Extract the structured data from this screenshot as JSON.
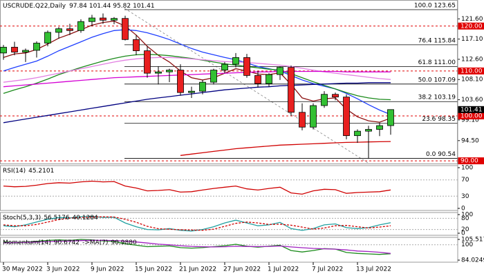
{
  "chart_data": {
    "type": "candlestick",
    "title": "USCRUDE.Q22,Daily",
    "categories": [
      "30 May 2022",
      null,
      null,
      null,
      "3 Jun 2022",
      null,
      null,
      null,
      "9 Jun 2022",
      null,
      null,
      null,
      "15 Jun 2022",
      null,
      null,
      null,
      "21 Jun 2022",
      null,
      null,
      null,
      "27 Jun 2022",
      null,
      null,
      null,
      "1 Jul 2022",
      null,
      null,
      null,
      "7 Jul 2022",
      null,
      null,
      null,
      "13 Jul 2022",
      null,
      null,
      null
    ],
    "candles": [
      {
        "open": 114.0,
        "high": 115.8,
        "low": 112.5,
        "close": 115.3
      },
      {
        "open": 115.3,
        "high": 116.5,
        "low": 113.5,
        "close": 114.2
      },
      {
        "open": 114.2,
        "high": 115.0,
        "low": 112.0,
        "close": 114.6
      },
      {
        "open": 114.6,
        "high": 116.6,
        "low": 113.0,
        "close": 116.2
      },
      {
        "open": 116.2,
        "high": 119.0,
        "low": 115.5,
        "close": 118.6
      },
      {
        "open": 118.6,
        "high": 119.8,
        "low": 117.2,
        "close": 119.4
      },
      {
        "open": 119.4,
        "high": 120.5,
        "low": 118.0,
        "close": 119.0
      },
      {
        "open": 119.0,
        "high": 121.5,
        "low": 118.5,
        "close": 121.0
      },
      {
        "open": 121.0,
        "high": 122.5,
        "low": 120.0,
        "close": 121.8
      },
      {
        "open": 121.8,
        "high": 122.8,
        "low": 120.5,
        "close": 121.3
      },
      {
        "open": 121.3,
        "high": 122.0,
        "low": 120.4,
        "close": 121.7
      },
      {
        "open": 121.7,
        "high": 122.3,
        "low": 116.8,
        "close": 117.0
      },
      {
        "open": 117.0,
        "high": 118.0,
        "low": 113.5,
        "close": 114.5
      },
      {
        "open": 114.5,
        "high": 115.5,
        "low": 108.5,
        "close": 109.5
      },
      {
        "open": 109.5,
        "high": 111.0,
        "low": 107.0,
        "close": 109.8
      },
      {
        "open": 109.8,
        "high": 110.5,
        "low": 107.5,
        "close": 110.2
      },
      {
        "open": 110.2,
        "high": 111.5,
        "low": 104.5,
        "close": 105.2
      },
      {
        "open": 105.2,
        "high": 106.5,
        "low": 104.0,
        "close": 105.5
      },
      {
        "open": 105.5,
        "high": 108.0,
        "low": 104.8,
        "close": 107.5
      },
      {
        "open": 107.5,
        "high": 110.5,
        "low": 107.0,
        "close": 110.2
      },
      {
        "open": 110.2,
        "high": 112.0,
        "low": 109.5,
        "close": 111.5
      },
      {
        "open": 111.5,
        "high": 114.0,
        "low": 110.8,
        "close": 113.0
      },
      {
        "open": 113.0,
        "high": 113.8,
        "low": 108.5,
        "close": 109.0
      },
      {
        "open": 109.0,
        "high": 110.0,
        "low": 106.3,
        "close": 107.2
      },
      {
        "open": 107.2,
        "high": 109.5,
        "low": 106.5,
        "close": 109.2
      },
      {
        "open": 109.2,
        "high": 111.0,
        "low": 108.0,
        "close": 110.8
      },
      {
        "open": 110.8,
        "high": 111.2,
        "low": 100.0,
        "close": 100.8
      },
      {
        "open": 100.8,
        "high": 102.8,
        "low": 96.8,
        "close": 97.5
      },
      {
        "open": 97.5,
        "high": 102.8,
        "low": 97.0,
        "close": 102.3
      },
      {
        "open": 102.3,
        "high": 105.5,
        "low": 101.8,
        "close": 104.8
      },
      {
        "open": 104.8,
        "high": 105.2,
        "low": 103.5,
        "close": 104.2
      },
      {
        "open": 104.2,
        "high": 104.8,
        "low": 94.8,
        "close": 95.6
      },
      {
        "open": 95.6,
        "high": 97.0,
        "low": 94.0,
        "close": 96.6
      },
      {
        "open": 96.6,
        "high": 97.8,
        "low": 90.54,
        "close": 97.0
      },
      {
        "open": 97.0,
        "high": 98.5,
        "low": 95.5,
        "close": 97.84
      },
      {
        "open": 97.84,
        "high": 101.44,
        "low": 95.82,
        "close": 101.41
      }
    ],
    "up_color": "#33c033",
    "down_color": "#e82020",
    "ylim": [
      89.4,
      125.8
    ],
    "yticks": [
      {
        "value": 94.5,
        "label": "94.50"
      },
      {
        "value": 99.1,
        "label": "99.10"
      },
      {
        "value": 103.6,
        "label": "103.60"
      },
      {
        "value": 108.1,
        "label": "108.10"
      },
      {
        "value": 112.6,
        "label": "112.60"
      },
      {
        "value": 117.1,
        "label": "117.10"
      },
      {
        "value": 121.6,
        "label": "121.60"
      }
    ],
    "lines": [
      {
        "color": "#8b1010",
        "values": [
          113,
          113.8,
          114,
          114.8,
          116,
          117.3,
          118.2,
          119.2,
          120.2,
          120.8,
          121.1,
          120,
          118,
          115.5,
          113.5,
          112,
          110,
          108.5,
          108,
          108.5,
          109.5,
          110.5,
          110,
          109.3,
          109.2,
          109.6,
          107,
          104,
          103.3,
          103.8,
          104,
          101.5,
          99.8,
          98.9,
          98.6,
          99.5
        ]
      },
      {
        "color": "#1f3fff",
        "values": [
          110,
          110.8,
          111.5,
          112.2,
          113.3,
          114.5,
          115.5,
          116.5,
          117.5,
          118.3,
          119,
          119.2,
          119,
          118.5,
          117.8,
          117,
          116,
          115,
          114.2,
          113.6,
          113,
          112.5,
          111.8,
          111,
          110.5,
          110,
          109,
          108,
          107.2,
          106.6,
          106,
          105,
          103.8,
          102.5,
          101.3,
          100.3
        ]
      },
      {
        "color": "#1a8a1a",
        "values": [
          105,
          105.8,
          106.5,
          107.3,
          108.2,
          109.2,
          110,
          110.8,
          111.5,
          112.2,
          112.8,
          113.3,
          113.6,
          113.7,
          113.6,
          113.4,
          113.1,
          112.8,
          112.4,
          112,
          111.6,
          111.3,
          111,
          110.7,
          110.4,
          110.2,
          109.4,
          108.5,
          107.6,
          106.8,
          106,
          105.2,
          104.5,
          104,
          103.7,
          103.6
        ]
      },
      {
        "color": "#e27fe2",
        "values": [
          107.5,
          107.8,
          108.1,
          108.5,
          109,
          109.5,
          110,
          110.5,
          111,
          111.5,
          112,
          112.4,
          112.7,
          112.9,
          113,
          113,
          112.9,
          112.7,
          112.5,
          112.3,
          112.1,
          112,
          111.9,
          111.7,
          111.5,
          111.3,
          111,
          110.6,
          110.2,
          109.8,
          109.5,
          109.2,
          108.9,
          108.6,
          108.3,
          108.1
        ]
      },
      {
        "color": "#d400d4",
        "values": [
          106.5,
          106.7,
          106.9,
          107.1,
          107.3,
          107.5,
          107.7,
          107.9,
          108.1,
          108.3,
          108.5,
          108.6,
          108.7,
          108.8,
          108.9,
          109,
          109.1,
          109.2,
          109.3,
          109.4,
          109.5,
          109.6,
          109.7,
          109.8,
          109.8,
          109.9,
          109.9,
          109.9,
          109.9,
          109.9,
          109.9,
          109.8,
          109.8,
          109.8,
          109.8,
          109.8
        ]
      },
      {
        "color": "#000080",
        "values": [
          98.5,
          98.9,
          99.3,
          99.7,
          100.1,
          100.5,
          100.9,
          101.3,
          101.7,
          102.1,
          102.5,
          102.9,
          103.3,
          103.7,
          104,
          104.3,
          104.6,
          104.9,
          105.2,
          105.5,
          105.8,
          106,
          106.2,
          106.4,
          106.5,
          106.7,
          106.8,
          106.9,
          107,
          107.1,
          107.2,
          107.3,
          107.3,
          107.4,
          107.4,
          107.4
        ]
      },
      {
        "color": "#d00000",
        "values": [
          null,
          null,
          null,
          null,
          null,
          null,
          null,
          null,
          null,
          null,
          null,
          null,
          null,
          null,
          null,
          null,
          91.2,
          91.5,
          91.8,
          92.1,
          92.4,
          92.7,
          92.9,
          93.1,
          93.3,
          93.5,
          93.6,
          93.7,
          93.8,
          93.9,
          94.0,
          94.1,
          94.15,
          94.2,
          94.25,
          94.3
        ]
      }
    ],
    "levels": [
      {
        "value": 120,
        "label": "120.00",
        "color": "#e00000"
      },
      {
        "value": 110,
        "label": "110.00",
        "color": "#e00000"
      },
      {
        "value": 100,
        "label": "100.00",
        "color": "#e00000"
      },
      {
        "value": 90,
        "label": "90.00",
        "color": "#e00000"
      }
    ],
    "fib": [
      {
        "value": 123.65,
        "label": "100.0 123.65"
      },
      {
        "value": 115.84,
        "label": "76.4 115.84"
      },
      {
        "value": 111.0,
        "label": "61.8 111.00"
      },
      {
        "value": 107.09,
        "label": "50.0 107.09"
      },
      {
        "value": 103.19,
        "label": "38.2 103.19"
      },
      {
        "value": 98.35,
        "label": "23.6 98.35"
      },
      {
        "value": 90.54,
        "label": "0.0 90.54"
      }
    ],
    "price": {
      "value": 101.41,
      "label": "101.41",
      "color": "#000000"
    },
    "indicators": [
      {
        "title": "RSI(14)",
        "ylim": [
          0,
          100
        ],
        "yticks": [
          100,
          70,
          30,
          0
        ],
        "series": [
          {
            "color": "#d00000",
            "values": [
              55,
              53,
              54,
              57,
              61,
              63,
              62,
              65,
              67,
              65,
              66,
              55,
              50,
              43,
              44,
              46,
              40,
              41,
              45,
              49,
              52,
              55,
              48,
              45,
              49,
              52,
              38,
              35,
              43,
              47,
              46,
              37,
              39,
              40,
              41,
              45.2101
            ]
          }
        ]
      },
      {
        "title": "Stoch(5,3,3)",
        "ylim": [
          0,
          100
        ],
        "yticks": [
          100,
          80,
          20,
          0
        ],
        "series": [
          {
            "color": "#20a0a0",
            "values": [
              40,
              35,
              45,
              60,
              75,
              85,
              82,
              88,
              90,
              85,
              86,
              55,
              35,
              20,
              18,
              25,
              15,
              12,
              20,
              35,
              55,
              70,
              55,
              40,
              45,
              58,
              25,
              15,
              25,
              45,
              50,
              30,
              25,
              30,
              45,
              56.5176
            ]
          },
          {
            "color": "#d00000",
            "dash": true,
            "values": [
              45,
              40,
              40,
              47,
              60,
              73,
              81,
              85,
              87,
              88,
              87,
              75,
              59,
              37,
              24,
              21,
              19,
              17,
              16,
              22,
              37,
              53,
              60,
              55,
              47,
              48,
              43,
              33,
              22,
              28,
              40,
              42,
              35,
              28,
              33,
              40.1284
            ]
          }
        ]
      },
      {
        "title": "Momentum(14)",
        "ylim": [
          84.0249,
          105.5179
        ],
        "yticks": [
          105.5179,
          100,
          84.0249
        ],
        "series": [
          {
            "color": "#1a8a1a",
            "values": [
              103,
              102,
              102.5,
              103.5,
              104.5,
              105,
              104.5,
              105.5,
              105,
              104,
              103.5,
              101,
              99.5,
              98,
              98.5,
              98.8,
              97,
              96.5,
              97,
              98,
              99,
              100.5,
              98.5,
              97.5,
              98.5,
              99.5,
              94,
              92.5,
              94,
              96,
              95.5,
              92,
              91,
              90.5,
              90,
              90.6742
            ]
          },
          {
            "name": "->MA(7)",
            "color": "#a020c0",
            "last_label": "90.9880",
            "values": [
              102,
              102.2,
              102.4,
              102.8,
              103.3,
              103.7,
              103.9,
              104.3,
              104.6,
              104.5,
              104.4,
              103.7,
              102.9,
              101.8,
              100.6,
              99.9,
              99.0,
              98.3,
              97.9,
              97.7,
              97.9,
              98.4,
              98.2,
              98.1,
              98.3,
              98.7,
              97.7,
              96.9,
              96.2,
              95.8,
              95.4,
              94.6,
              93.5,
              93.0,
              92.2,
              90.988
            ]
          }
        ]
      }
    ]
  }
}
